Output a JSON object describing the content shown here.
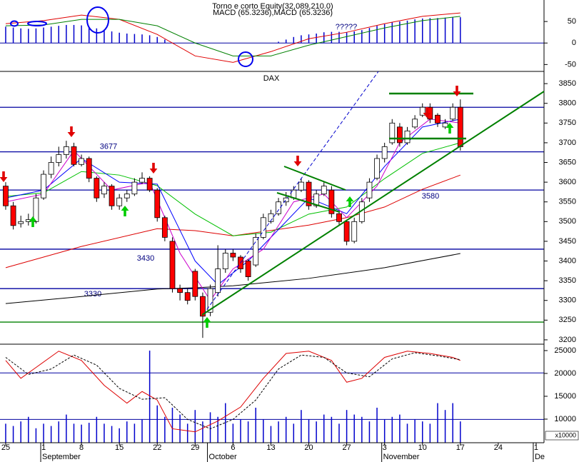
{
  "chart_data": [
    {
      "type": "macd",
      "title": "Torno e corto Equity(32,089,210.0)",
      "subtitle": "MACD (65.3236),MACD (65.3236)",
      "annotation": "?????",
      "ylim": [
        -66,
        100
      ],
      "yticks": [
        50,
        0,
        -50
      ],
      "zero_line": true,
      "histogram": {
        "color": "#0000cc",
        "values": [
          38,
          36,
          34,
          33,
          34,
          36,
          38,
          40,
          42,
          42,
          41,
          38,
          34,
          31,
          27,
          24,
          22,
          21,
          20,
          18,
          14,
          8,
          0,
          0,
          0,
          0,
          0,
          0,
          0,
          0,
          0,
          0,
          0,
          0,
          0,
          0,
          3,
          8,
          14,
          18,
          20,
          22,
          25,
          26,
          26,
          25,
          27,
          30,
          35,
          40,
          44,
          48,
          50,
          52,
          55,
          57,
          58,
          58,
          59,
          60,
          60
        ]
      },
      "series": [
        {
          "color": "#e00000",
          "x": [
            0,
            5,
            10,
            15,
            20,
            25,
            30,
            35,
            40,
            45,
            50,
            55,
            60
          ],
          "values": [
            45,
            52,
            65,
            55,
            20,
            -30,
            -45,
            -20,
            10,
            25,
            45,
            62,
            70
          ]
        },
        {
          "color": "#008000",
          "x": [
            0,
            5,
            10,
            15,
            20,
            25,
            30,
            35,
            40,
            45,
            50,
            55,
            60
          ],
          "values": [
            40,
            42,
            55,
            55,
            40,
            0,
            -30,
            -30,
            -5,
            15,
            35,
            52,
            62
          ]
        }
      ]
    },
    {
      "type": "candlestick",
      "title": "DAX",
      "ylim": [
        3189,
        3881
      ],
      "yticks": [
        3850,
        3800,
        3750,
        3700,
        3650,
        3600,
        3550,
        3500,
        3450,
        3400,
        3350,
        3300,
        3250,
        3200
      ],
      "up_color": "#ffffff",
      "down_color": "#ff0000",
      "open": [
        3590,
        3540,
        3495,
        3500,
        3500,
        3560,
        3620,
        3650,
        3670,
        3690,
        3645,
        3660,
        3610,
        3570,
        3590,
        3540,
        3560,
        3570,
        3600,
        3610,
        3580,
        3510,
        3450,
        3330,
        3320,
        3374,
        3310,
        3270,
        3320,
        3380,
        3420,
        3410,
        3400,
        3390,
        3460,
        3500,
        3520,
        3550,
        3560,
        3580,
        3600,
        3540,
        3570,
        3580,
        3520,
        3500,
        3450,
        3500,
        3560,
        3610,
        3660,
        3700,
        3740,
        3700,
        3740,
        3770,
        3790,
        3770,
        3740,
        3760,
        3790
      ],
      "high": [
        3600,
        3550,
        3515,
        3520,
        3570,
        3630,
        3665,
        3690,
        3705,
        3700,
        3670,
        3665,
        3615,
        3600,
        3595,
        3570,
        3580,
        3610,
        3625,
        3615,
        3585,
        3515,
        3460,
        3340,
        3330,
        3380,
        3320,
        3340,
        3440,
        3430,
        3430,
        3415,
        3405,
        3470,
        3520,
        3530,
        3560,
        3575,
        3590,
        3610,
        3605,
        3580,
        3600,
        3590,
        3525,
        3505,
        3510,
        3560,
        3610,
        3670,
        3700,
        3760,
        3750,
        3740,
        3770,
        3800,
        3800,
        3775,
        3760,
        3800,
        3810
      ],
      "low": [
        3530,
        3480,
        3485,
        3490,
        3495,
        3555,
        3610,
        3640,
        3660,
        3640,
        3640,
        3600,
        3550,
        3560,
        3530,
        3530,
        3550,
        3565,
        3595,
        3575,
        3500,
        3450,
        3320,
        3300,
        3290,
        3300,
        3205,
        3260,
        3310,
        3370,
        3400,
        3370,
        3350,
        3385,
        3455,
        3495,
        3515,
        3540,
        3555,
        3575,
        3530,
        3535,
        3565,
        3510,
        3490,
        3440,
        3445,
        3495,
        3550,
        3605,
        3650,
        3695,
        3690,
        3695,
        3735,
        3765,
        3750,
        3740,
        3735,
        3755,
        3680
      ],
      "close": [
        3540,
        3490,
        3500,
        3505,
        3560,
        3620,
        3650,
        3670,
        3690,
        3645,
        3660,
        3610,
        3560,
        3590,
        3540,
        3560,
        3570,
        3600,
        3610,
        3580,
        3510,
        3460,
        3330,
        3320,
        3300,
        3310,
        3260,
        3330,
        3380,
        3420,
        3410,
        3380,
        3360,
        3460,
        3510,
        3520,
        3550,
        3560,
        3580,
        3600,
        3540,
        3570,
        3590,
        3520,
        3500,
        3450,
        3500,
        3550,
        3600,
        3660,
        3690,
        3750,
        3700,
        3730,
        3760,
        3790,
        3760,
        3750,
        3750,
        3790,
        3690
      ],
      "levels": [
        {
          "value": 3790,
          "color": "#0000a0"
        },
        {
          "value": 3677,
          "label": "3677",
          "color": "#0000a0"
        },
        {
          "value": 3580,
          "label": "3580",
          "color": "#0000a0"
        },
        {
          "value": 3430,
          "label": "3430",
          "color": "#0000a0"
        },
        {
          "value": 3330,
          "label": "3330",
          "color": "#0000a0"
        },
        {
          "value": 3245,
          "color": "#008000"
        }
      ],
      "series": [
        {
          "color": "#000000",
          "x": [
            0,
            10,
            20,
            25,
            30,
            40,
            50,
            60
          ],
          "values": [
            3292,
            3310,
            3329,
            3332,
            3337,
            3356,
            3383,
            3419
          ]
        },
        {
          "color": "#dd0000",
          "x": [
            0,
            10,
            20,
            25,
            30,
            40,
            45,
            50,
            55,
            60
          ],
          "values": [
            3383,
            3437,
            3482,
            3477,
            3464,
            3491,
            3510,
            3537,
            3582,
            3618
          ]
        },
        {
          "color": "#00c000",
          "x": [
            0,
            5,
            10,
            15,
            20,
            25,
            30,
            35,
            40,
            45,
            50,
            55,
            60
          ],
          "values": [
            3564,
            3573,
            3627,
            3618,
            3591,
            3519,
            3464,
            3473,
            3519,
            3537,
            3609,
            3673,
            3700
          ]
        },
        {
          "color": "#0000ff",
          "x": [
            0,
            5,
            10,
            15,
            20,
            25,
            28,
            32,
            36,
            40,
            45,
            50,
            55,
            60
          ],
          "values": [
            3560,
            3580,
            3660,
            3600,
            3595,
            3400,
            3340,
            3400,
            3480,
            3560,
            3520,
            3640,
            3740,
            3760
          ]
        },
        {
          "color": "#cc00cc",
          "x": [
            0,
            5,
            9,
            14,
            19,
            23,
            27,
            30,
            34,
            38,
            42,
            45,
            49,
            52,
            56,
            60
          ],
          "values": [
            3550,
            3570,
            3680,
            3580,
            3600,
            3420,
            3300,
            3380,
            3430,
            3550,
            3570,
            3510,
            3590,
            3700,
            3760,
            3750
          ]
        }
      ]
    },
    {
      "type": "volume_stochastic",
      "ylim": [
        4840,
        26400
      ],
      "yticks": [
        25000,
        20000,
        15000,
        10000
      ],
      "unit_label": "x10000",
      "volume": {
        "color": "#0000cc",
        "values": [
          9000,
          8500,
          9500,
          10500,
          8000,
          9000,
          8500,
          9500,
          11000,
          9000,
          8800,
          9200,
          10500,
          9000,
          8500,
          8000,
          9500,
          9000,
          10000,
          25000,
          13000,
          10500,
          12500,
          11000,
          9000,
          12000,
          9500,
          11500,
          10500,
          13500,
          9000,
          10000,
          9500,
          12500,
          10000,
          8500,
          9500,
          10500,
          9000,
          12000,
          10000,
          9500,
          11000,
          10500,
          9000,
          12000,
          11000,
          10500,
          9500,
          12500,
          10000,
          10500,
          11000,
          9000,
          10000,
          9500,
          9000,
          13500,
          12000,
          13500,
          9500
        ]
      },
      "y2lim": [
        -10,
        117
      ],
      "y2_levels": [
        80,
        20
      ],
      "level_color": "#0000a0",
      "series": [
        {
          "color": "#dd0000",
          "axis": "y2",
          "x": [
            0,
            2,
            4,
            7,
            10,
            13,
            16,
            18,
            20,
            22,
            25,
            28,
            31,
            34,
            37,
            40,
            43,
            45,
            47,
            50,
            53,
            56,
            59,
            60
          ],
          "values": [
            96,
            73,
            87,
            108,
            96,
            64,
            41,
            56,
            45,
            8,
            4,
            18,
            36,
            73,
            105,
            108,
            96,
            68,
            73,
            100,
            108,
            105,
            100,
            96
          ]
        },
        {
          "color": "#000000",
          "axis": "y2",
          "dashed": true,
          "x": [
            0,
            3,
            6,
            9,
            12,
            15,
            18,
            21,
            24,
            27,
            30,
            33,
            36,
            39,
            42,
            45,
            48,
            51,
            54,
            57,
            60
          ],
          "values": [
            100,
            78,
            85,
            103,
            90,
            60,
            46,
            48,
            20,
            8,
            20,
            45,
            85,
            103,
            100,
            80,
            75,
            98,
            106,
            102,
            97
          ]
        }
      ]
    }
  ],
  "x_axis": {
    "xlim": [
      -0.75,
      71.04
    ],
    "xticks": [
      {
        "value": 0,
        "label": "25"
      },
      {
        "value": 5,
        "label": "1"
      },
      {
        "value": 10,
        "label": "8"
      },
      {
        "value": 15,
        "label": "15"
      },
      {
        "value": 20,
        "label": "22"
      },
      {
        "value": 25,
        "label": "29"
      },
      {
        "value": 30,
        "label": "6"
      },
      {
        "value": 35,
        "label": "13"
      },
      {
        "value": 40,
        "label": "20"
      },
      {
        "value": 45,
        "label": "27"
      },
      {
        "value": 50,
        "label": "3"
      },
      {
        "value": 55,
        "label": "10"
      },
      {
        "value": 60,
        "label": "17"
      },
      {
        "value": 65,
        "label": "24"
      },
      {
        "value": 70,
        "label": "1"
      }
    ],
    "months": [
      {
        "value": 5,
        "label": "September"
      },
      {
        "value": 27,
        "label": "October"
      },
      {
        "value": 50,
        "label": "November"
      },
      {
        "value": 70,
        "label": "De"
      }
    ]
  }
}
